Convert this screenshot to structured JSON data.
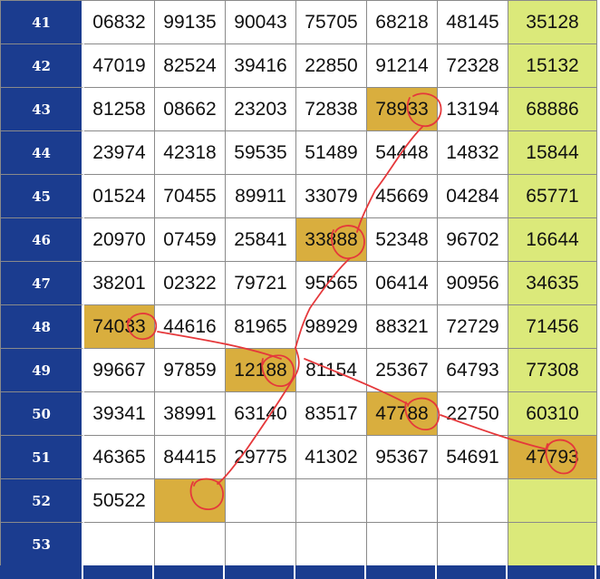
{
  "table": {
    "rows": [
      {
        "num": "41",
        "cells": [
          "06832",
          "99135",
          "90043",
          "75705",
          "68218",
          "48145",
          "35128"
        ]
      },
      {
        "num": "42",
        "cells": [
          "47019",
          "82524",
          "39416",
          "22850",
          "91214",
          "72328",
          "15132"
        ]
      },
      {
        "num": "43",
        "cells": [
          "81258",
          "08662",
          "23203",
          "72838",
          "78933",
          "13194",
          "68886"
        ]
      },
      {
        "num": "44",
        "cells": [
          "23974",
          "42318",
          "59535",
          "51489",
          "54448",
          "14832",
          "15844"
        ]
      },
      {
        "num": "45",
        "cells": [
          "01524",
          "70455",
          "89911",
          "33079",
          "45669",
          "04284",
          "65771"
        ]
      },
      {
        "num": "46",
        "cells": [
          "20970",
          "07459",
          "25841",
          "33888",
          "52348",
          "96702",
          "16644"
        ]
      },
      {
        "num": "47",
        "cells": [
          "38201",
          "02322",
          "79721",
          "95565",
          "06414",
          "90956",
          "34635"
        ]
      },
      {
        "num": "48",
        "cells": [
          "74033",
          "44616",
          "81965",
          "98929",
          "88321",
          "72729",
          "71456"
        ]
      },
      {
        "num": "49",
        "cells": [
          "99667",
          "97859",
          "12188",
          "81154",
          "25367",
          "64793",
          "77308"
        ]
      },
      {
        "num": "50",
        "cells": [
          "39341",
          "38991",
          "63140",
          "83517",
          "47788",
          "22750",
          "60310"
        ]
      },
      {
        "num": "51",
        "cells": [
          "46365",
          "84415",
          "29775",
          "41302",
          "95367",
          "54691",
          "47793"
        ]
      },
      {
        "num": "52",
        "cells": [
          "50522",
          "",
          "",
          "",
          "",
          "",
          ""
        ]
      },
      {
        "num": "53",
        "cells": [
          "",
          "",
          "",
          "",
          "",
          "",
          ""
        ]
      }
    ],
    "highlighted": [
      [
        2,
        4
      ],
      [
        5,
        3
      ],
      [
        7,
        0
      ],
      [
        8,
        2
      ],
      [
        9,
        4
      ],
      [
        10,
        6
      ],
      [
        11,
        1
      ]
    ]
  },
  "colors": {
    "rownum_bg": "#1b3c8f",
    "last_col_bg": "#dbe97a",
    "highlight_bg": "#d9ae3e",
    "annotation_stroke": "#e5383b"
  }
}
